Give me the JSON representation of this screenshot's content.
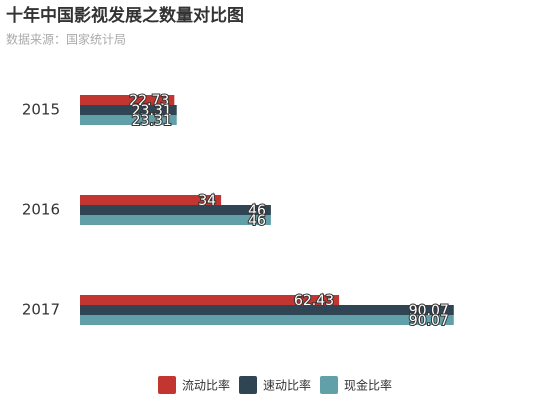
{
  "chart_data": {
    "type": "hbar",
    "title": "十年中国影视发展之数量对比图",
    "subtitle": "数据来源：国家统计局",
    "categories": [
      "2015",
      "2016",
      "2017"
    ],
    "series": [
      {
        "name": "流动比率",
        "color": "#c23531",
        "values": [
          22.73,
          34,
          62.43
        ]
      },
      {
        "name": "速动比率",
        "color": "#2f4554",
        "values": [
          23.31,
          46,
          90.07
        ]
      },
      {
        "name": "现金比率",
        "color": "#61a0a8",
        "values": [
          23.31,
          46,
          90.07
        ]
      }
    ],
    "xlim": [
      0,
      100
    ],
    "legend": "bottom"
  }
}
